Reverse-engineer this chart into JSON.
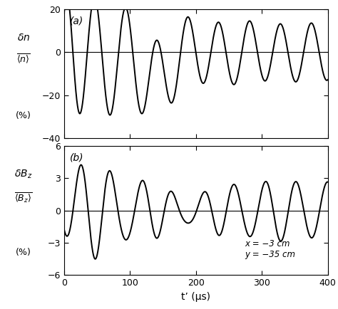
{
  "xlim": [
    0,
    400
  ],
  "panel_a": {
    "ylim": [
      -40,
      20
    ],
    "yticks": [
      20,
      0,
      -20,
      -40
    ],
    "label": "(a)"
  },
  "panel_b": {
    "ylim": [
      -6,
      6
    ],
    "yticks": [
      6,
      3,
      0,
      -3,
      -6
    ],
    "label": "(b)"
  },
  "xticks": [
    0,
    100,
    200,
    300,
    400
  ],
  "xlabel": "t’ (μs)",
  "annotation": "x = −3 cm\ny = −35 cm",
  "line_color": "#000000",
  "line_width": 1.4,
  "background_color": "#ffffff",
  "omega_a": 0.134,
  "phase_a": 1.6,
  "amp_a_base": 13.0,
  "amp_a_extra": 28.0,
  "amp_a_decay": 85.0,
  "amp_a_rise": 8.0,
  "omega_b": 0.134,
  "phase_b": -1.62,
  "amp_b_base": 2.6,
  "amp_b_extra": 2.0,
  "amp_b_decay": 110.0,
  "amp_b_rise": 8.0,
  "beat_amp": 0.5,
  "beat_period": 280.0,
  "beat_phase": 0.0
}
